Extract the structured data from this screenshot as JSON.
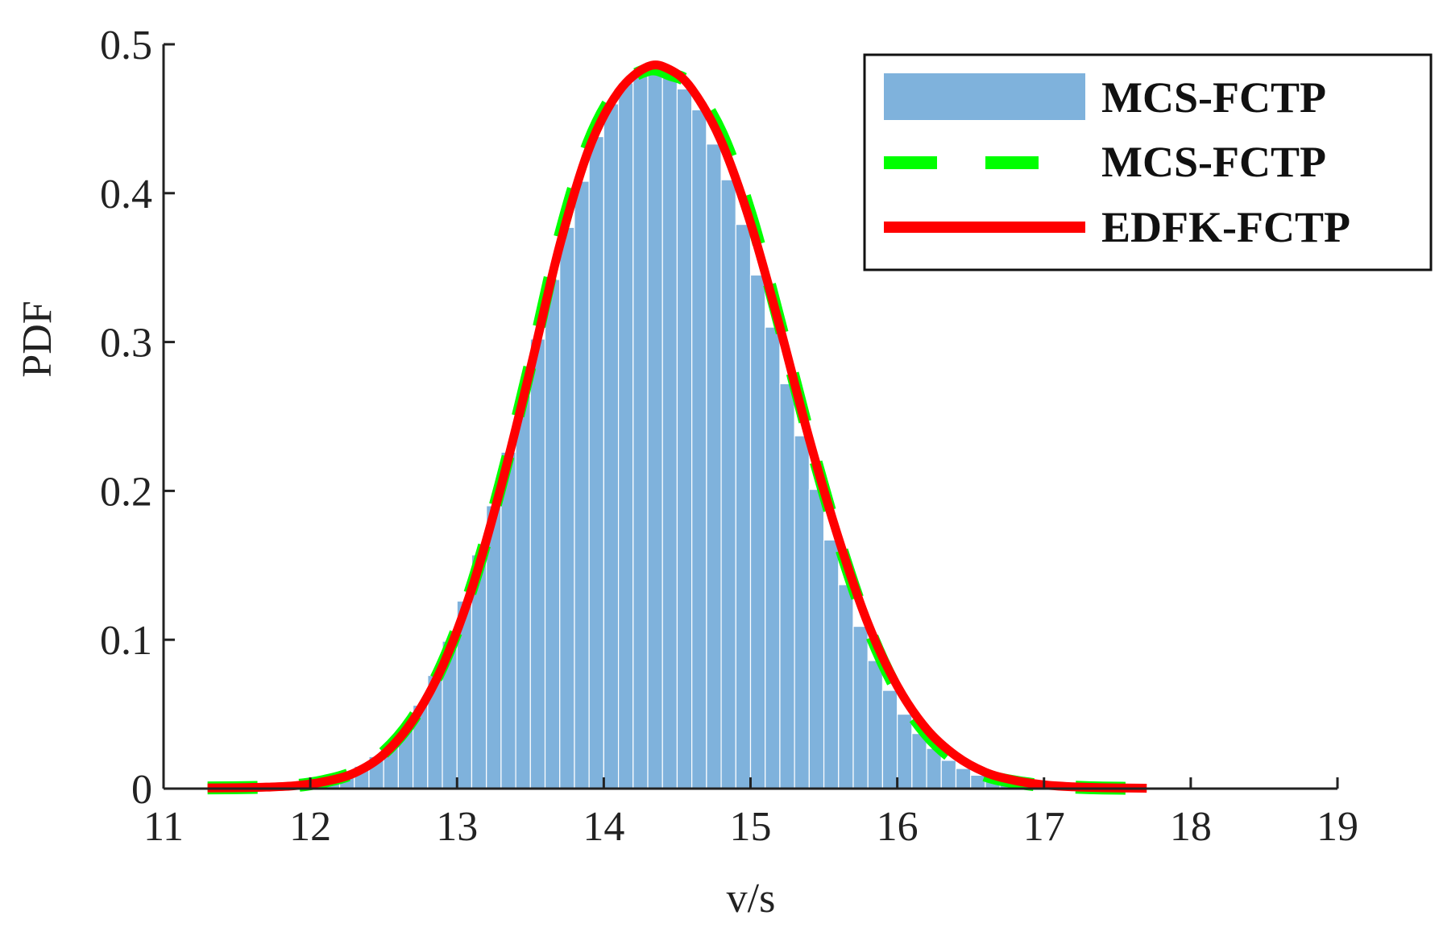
{
  "chart_data": {
    "type": "bar",
    "title": "",
    "xlabel": "v/s",
    "ylabel": "PDF",
    "xlim": [
      11,
      19
    ],
    "ylim": [
      0,
      0.5
    ],
    "x_ticks": [
      "11",
      "12",
      "13",
      "14",
      "15",
      "16",
      "17",
      "18",
      "19"
    ],
    "y_ticks": [
      "0",
      "0.1",
      "0.2",
      "0.3",
      "0.4",
      "0.5"
    ],
    "grid": false,
    "legend_position": "top-right",
    "colors": {
      "histogram": "#7fb2dc",
      "dashed": "#00ff00",
      "solid": "#ff0000",
      "axes": "#222222"
    },
    "histogram": {
      "name": "MCS-FCTP",
      "bin_edges": [
        11.3,
        17.7
      ],
      "bin_centers": [
        11.35,
        11.45,
        11.55,
        11.65,
        11.75,
        11.85,
        11.95,
        12.05,
        12.15,
        12.25,
        12.35,
        12.45,
        12.55,
        12.65,
        12.75,
        12.85,
        12.95,
        13.05,
        13.15,
        13.25,
        13.35,
        13.45,
        13.55,
        13.65,
        13.75,
        13.85,
        13.95,
        14.05,
        14.15,
        14.25,
        14.35,
        14.45,
        14.55,
        14.65,
        14.75,
        14.85,
        14.95,
        15.05,
        15.15,
        15.25,
        15.35,
        15.45,
        15.55,
        15.65,
        15.75,
        15.85,
        15.95,
        16.05,
        16.15,
        16.25,
        16.35,
        16.45,
        16.55,
        16.65,
        16.75,
        16.85,
        16.95,
        17.05,
        17.15,
        17.25,
        17.35,
        17.45,
        17.55,
        17.65
      ],
      "values": [
        0.0003,
        0.0004,
        0.0005,
        0.0008,
        0.0012,
        0.0018,
        0.0028,
        0.0044,
        0.007,
        0.0105,
        0.015,
        0.0215,
        0.03,
        0.041,
        0.056,
        0.076,
        0.099,
        0.126,
        0.157,
        0.19,
        0.226,
        0.264,
        0.302,
        0.342,
        0.377,
        0.408,
        0.438,
        0.46,
        0.474,
        0.48,
        0.481,
        0.479,
        0.47,
        0.456,
        0.433,
        0.409,
        0.379,
        0.345,
        0.31,
        0.272,
        0.237,
        0.201,
        0.167,
        0.137,
        0.109,
        0.086,
        0.066,
        0.05,
        0.037,
        0.027,
        0.019,
        0.0135,
        0.009,
        0.0062,
        0.004,
        0.0025,
        0.0016,
        0.001,
        0.0006,
        0.0004,
        0.0003,
        0.0002,
        0.0002,
        0.0001
      ]
    },
    "series": [
      {
        "name": "MCS-FCTP",
        "style": "dashed",
        "x": [
          11.3,
          11.5,
          11.7,
          11.9,
          12.1,
          12.3,
          12.5,
          12.7,
          12.9,
          13.1,
          13.3,
          13.5,
          13.7,
          13.9,
          14.1,
          14.3,
          14.45,
          14.6,
          14.8,
          15.0,
          15.2,
          15.4,
          15.6,
          15.8,
          16.0,
          16.2,
          16.4,
          16.6,
          16.8,
          17.0,
          17.2,
          17.4,
          17.7
        ],
        "y": [
          0.0005,
          0.0006,
          0.001,
          0.002,
          0.005,
          0.011,
          0.024,
          0.047,
          0.083,
          0.135,
          0.205,
          0.285,
          0.37,
          0.434,
          0.47,
          0.483,
          0.48,
          0.472,
          0.44,
          0.385,
          0.312,
          0.236,
          0.167,
          0.109,
          0.066,
          0.037,
          0.019,
          0.009,
          0.0045,
          0.002,
          0.001,
          0.0004,
          0.0001
        ]
      },
      {
        "name": "EDFK-FCTP",
        "style": "solid",
        "x": [
          11.3,
          11.5,
          11.7,
          11.9,
          12.1,
          12.3,
          12.5,
          12.7,
          12.9,
          13.1,
          13.3,
          13.5,
          13.7,
          13.9,
          14.1,
          14.3,
          14.45,
          14.6,
          14.8,
          15.0,
          15.2,
          15.4,
          15.6,
          15.8,
          16.0,
          16.2,
          16.4,
          16.6,
          16.8,
          17.0,
          17.2,
          17.4,
          17.7
        ],
        "y": [
          0.0005,
          0.0006,
          0.001,
          0.002,
          0.0048,
          0.0105,
          0.023,
          0.046,
          0.082,
          0.134,
          0.203,
          0.282,
          0.365,
          0.43,
          0.468,
          0.485,
          0.483,
          0.47,
          0.435,
          0.38,
          0.31,
          0.235,
          0.168,
          0.111,
          0.069,
          0.04,
          0.022,
          0.011,
          0.0055,
          0.0025,
          0.0012,
          0.0006,
          0.0003
        ]
      }
    ],
    "legend": [
      "MCS-FCTP",
      "MCS-FCTP",
      "EDFK-FCTP"
    ]
  }
}
